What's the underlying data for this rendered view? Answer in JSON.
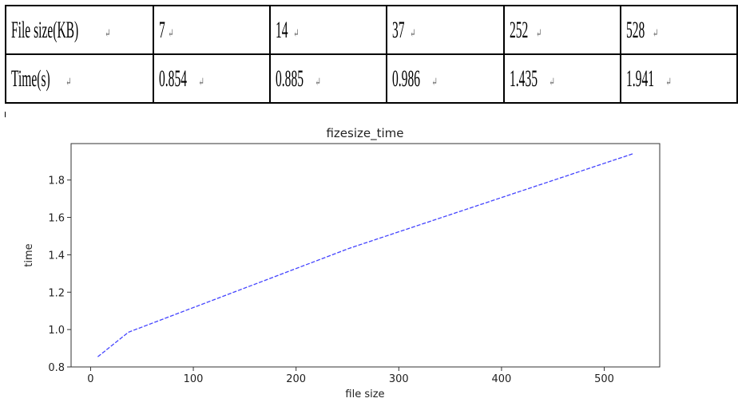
{
  "table": {
    "header_label": "File size(KB)",
    "row_label": "Time(s)",
    "mark": "↵",
    "file_sizes": [
      "7",
      "14",
      "37",
      "252",
      "528"
    ],
    "times": [
      "0.854",
      "0.885",
      "0.986",
      "1.435",
      "1.941"
    ]
  },
  "chart_data": {
    "type": "line",
    "title": "fizesize_time",
    "xlabel": "file size",
    "ylabel": "time",
    "x": [
      7,
      14,
      37,
      252,
      528
    ],
    "series": [
      {
        "name": "time",
        "values": [
          0.854,
          0.885,
          0.986,
          1.435,
          1.941
        ],
        "color": "#4444ff",
        "style": "dashed"
      }
    ],
    "xlim": [
      -19,
      554
    ],
    "ylim": [
      0.8,
      1.995
    ],
    "xticks": [
      0,
      100,
      200,
      300,
      400,
      500
    ],
    "yticks": [
      0.8,
      1.0,
      1.2,
      1.4,
      1.6,
      1.8
    ],
    "ytick_labels": [
      "0.8",
      "1.0",
      "1.2",
      "1.4",
      "1.6",
      "1.8"
    ],
    "grid": false
  }
}
